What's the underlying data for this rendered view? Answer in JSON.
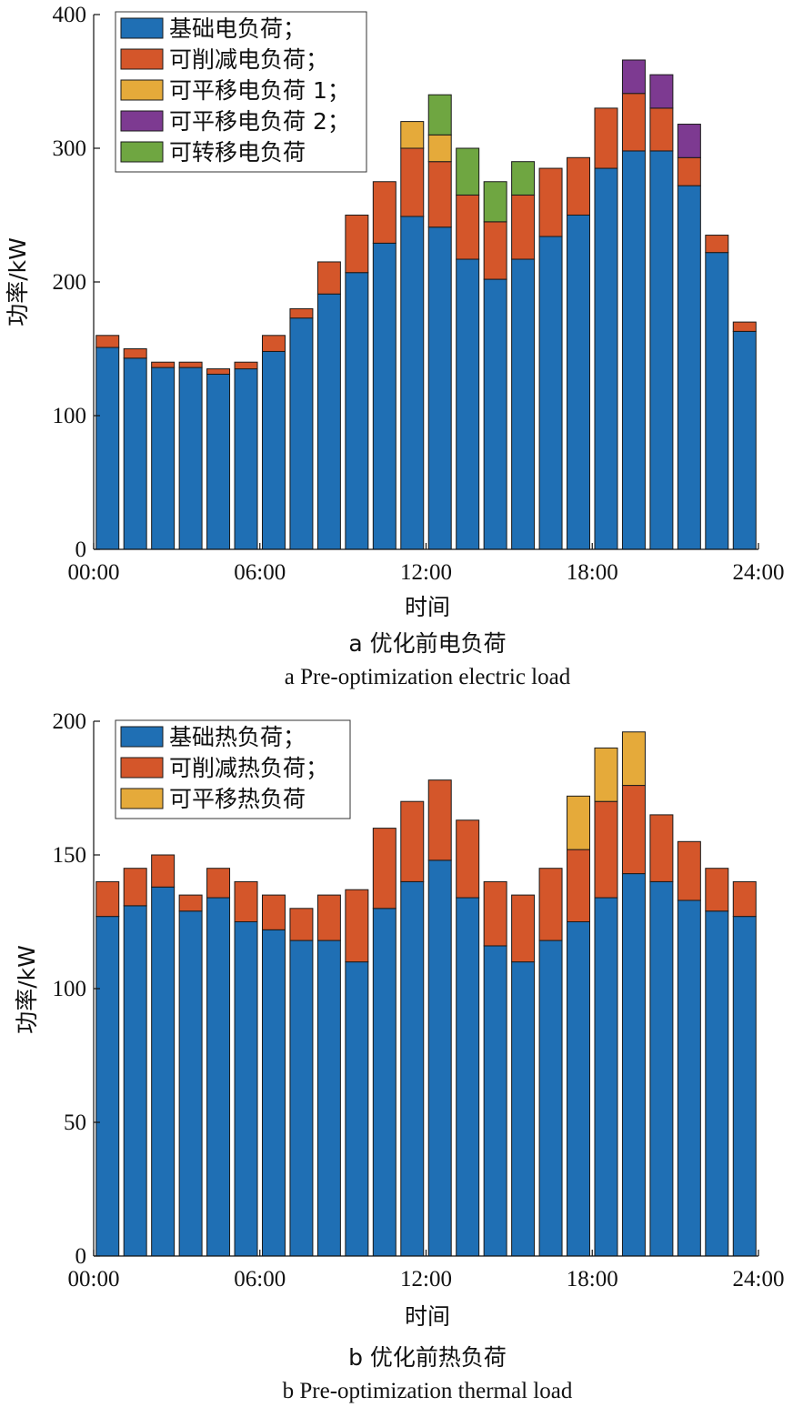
{
  "colors": {
    "base": "#1f6fb4",
    "cut": "#d4562a",
    "shift1": "#e5aa3a",
    "shift2": "#7d3a91",
    "transfer": "#6fa641"
  },
  "chart_data": [
    {
      "type": "bar",
      "stacked": true,
      "caption_cn": "a  优化前电负荷",
      "caption_en": "a  Pre-optimization electric load",
      "xlabel": "时间",
      "ylabel": "功率/kW",
      "ylim": [
        0,
        400
      ],
      "yticks": [
        0,
        100,
        200,
        300,
        400
      ],
      "xlim": [
        0,
        24
      ],
      "xticks": [
        0,
        6,
        12,
        18,
        24
      ],
      "xtick_labels": [
        "00:00",
        "06:00",
        "12:00",
        "18:00",
        "24:00"
      ],
      "legend_position": "top-left",
      "x": [
        0.5,
        1.5,
        2.5,
        3.5,
        4.5,
        5.5,
        6.5,
        7.5,
        8.5,
        9.5,
        10.5,
        11.5,
        12.5,
        13.5,
        14.5,
        15.5,
        16.5,
        17.5,
        18.5,
        19.5,
        20.5,
        21.5,
        22.5,
        23.5
      ],
      "series": [
        {
          "name": "基础电负荷；",
          "color_key": "base",
          "values": [
            151,
            143,
            136,
            136,
            131,
            135,
            148,
            173,
            191,
            207,
            229,
            249,
            241,
            217,
            202,
            217,
            234,
            250,
            285,
            298,
            298,
            272,
            222,
            163
          ]
        },
        {
          "name": "可削减电负荷；",
          "color_key": "cut",
          "values": [
            9,
            7,
            4,
            4,
            4,
            5,
            12,
            7,
            24,
            43,
            46,
            51,
            49,
            48,
            43,
            48,
            51,
            43,
            45,
            43,
            32,
            21,
            13,
            7
          ]
        },
        {
          "name": "可平移电负荷 1；",
          "color_key": "shift1",
          "values": [
            0,
            0,
            0,
            0,
            0,
            0,
            0,
            0,
            0,
            0,
            0,
            20,
            20,
            0,
            0,
            0,
            0,
            0,
            0,
            0,
            0,
            0,
            0,
            0
          ]
        },
        {
          "name": "可平移电负荷 2；",
          "color_key": "shift2",
          "values": [
            0,
            0,
            0,
            0,
            0,
            0,
            0,
            0,
            0,
            0,
            0,
            0,
            0,
            0,
            0,
            0,
            0,
            0,
            0,
            25,
            25,
            25,
            0,
            0
          ]
        },
        {
          "name": "可转移电负荷",
          "color_key": "transfer",
          "values": [
            0,
            0,
            0,
            0,
            0,
            0,
            0,
            0,
            0,
            0,
            0,
            0,
            30,
            35,
            30,
            25,
            0,
            0,
            0,
            0,
            0,
            0,
            0,
            0
          ]
        }
      ]
    },
    {
      "type": "bar",
      "stacked": true,
      "caption_cn": "b  优化前热负荷",
      "caption_en": "b  Pre-optimization thermal load",
      "xlabel": "时间",
      "ylabel": "功率/kW",
      "ylim": [
        0,
        200
      ],
      "yticks": [
        0,
        50,
        100,
        150,
        200
      ],
      "xlim": [
        0,
        24
      ],
      "xticks": [
        0,
        6,
        12,
        18,
        24
      ],
      "xtick_labels": [
        "00:00",
        "06:00",
        "12:00",
        "18:00",
        "24:00"
      ],
      "legend_position": "top-left",
      "x": [
        0.5,
        1.5,
        2.5,
        3.5,
        4.5,
        5.5,
        6.5,
        7.5,
        8.5,
        9.5,
        10.5,
        11.5,
        12.5,
        13.5,
        14.5,
        15.5,
        16.5,
        17.5,
        18.5,
        19.5,
        20.5,
        21.5,
        22.5,
        23.5
      ],
      "series": [
        {
          "name": "基础热负荷；",
          "color_key": "base",
          "values": [
            127,
            131,
            138,
            129,
            134,
            125,
            122,
            118,
            118,
            110,
            130,
            140,
            148,
            134,
            116,
            110,
            118,
            125,
            134,
            143,
            140,
            133,
            129,
            127
          ]
        },
        {
          "name": "可削减热负荷；",
          "color_key": "cut",
          "values": [
            13,
            14,
            12,
            6,
            11,
            15,
            13,
            12,
            17,
            27,
            30,
            30,
            30,
            29,
            24,
            25,
            27,
            27,
            36,
            33,
            25,
            22,
            16,
            13
          ]
        },
        {
          "name": "可平移热负荷",
          "color_key": "shift1",
          "values": [
            0,
            0,
            0,
            0,
            0,
            0,
            0,
            0,
            0,
            0,
            0,
            0,
            0,
            0,
            0,
            0,
            0,
            20,
            20,
            20,
            0,
            0,
            0,
            0
          ]
        }
      ]
    }
  ]
}
